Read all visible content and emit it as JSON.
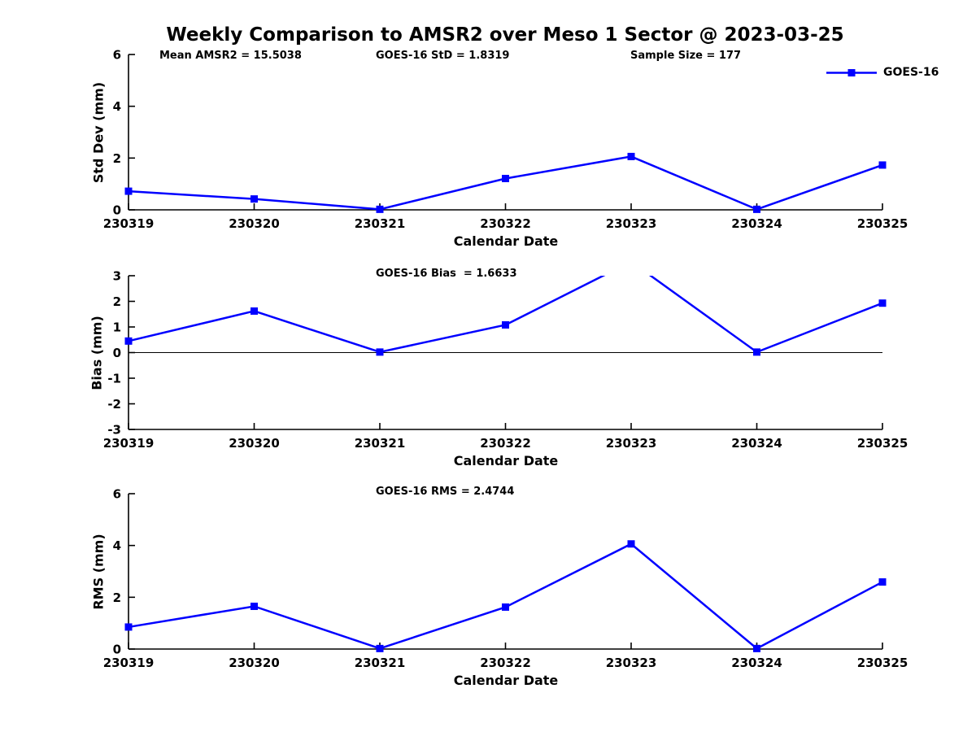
{
  "title": "Weekly Comparison to AMSR2 over Meso 1 Sector @ 2023-03-25",
  "legend": {
    "label": "GOES-16"
  },
  "colors": {
    "line": "#0000FF",
    "axis": "#000000",
    "text": "#000000"
  },
  "chart_data": [
    {
      "id": "std-dev",
      "type": "line",
      "annotations": [
        "Mean AMSR2 = 15.5038",
        "GOES-16 StD = 1.8319",
        "Sample Size = 177"
      ],
      "categories": [
        "230319",
        "230320",
        "230321",
        "230322",
        "230323",
        "230324",
        "230325"
      ],
      "series": [
        {
          "name": "GOES-16",
          "color": "#0000FF",
          "marker": "square",
          "values": [
            0.72,
            0.42,
            0.02,
            1.21,
            2.06,
            0.02,
            1.73
          ]
        }
      ],
      "xlabel": "Calendar Date",
      "ylabel": "Std Dev (mm)",
      "ylim": [
        0,
        6
      ],
      "yticks": [
        0,
        2,
        4,
        6
      ],
      "grid": false,
      "zero_line": false,
      "legend_position": "top-right"
    },
    {
      "id": "bias",
      "type": "line",
      "annotations": [
        "GOES-16 Bias  = 1.6633"
      ],
      "categories": [
        "230319",
        "230320",
        "230321",
        "230322",
        "230323",
        "230324",
        "230325"
      ],
      "series": [
        {
          "name": "GOES-16",
          "color": "#0000FF",
          "marker": "square",
          "values": [
            0.45,
            1.62,
            0.02,
            1.08,
            3.55,
            0.02,
            1.93
          ]
        }
      ],
      "xlabel": "Calendar Date",
      "ylabel": "Bias (mm)",
      "ylim": [
        -3,
        3
      ],
      "yticks": [
        -3,
        -2,
        -1,
        0,
        1,
        2,
        3
      ],
      "grid": false,
      "zero_line": true,
      "legend_position": "none",
      "note": "value at 230323 exceeds y-axis max and is clipped at top of plot"
    },
    {
      "id": "rms",
      "type": "line",
      "annotations": [
        "GOES-16 RMS = 2.4744"
      ],
      "categories": [
        "230319",
        "230320",
        "230321",
        "230322",
        "230323",
        "230324",
        "230325"
      ],
      "series": [
        {
          "name": "GOES-16",
          "color": "#0000FF",
          "marker": "square",
          "values": [
            0.85,
            1.65,
            0.02,
            1.62,
            4.06,
            0.02,
            2.59
          ]
        }
      ],
      "xlabel": "Calendar Date",
      "ylabel": "RMS (mm)",
      "ylim": [
        0,
        6
      ],
      "yticks": [
        0,
        2,
        4,
        6
      ],
      "grid": false,
      "zero_line": false,
      "legend_position": "none"
    }
  ]
}
